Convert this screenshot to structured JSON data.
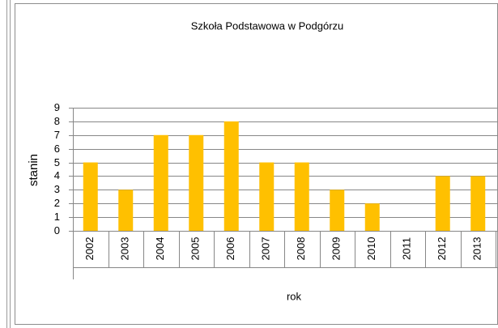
{
  "chart_data": {
    "type": "bar",
    "title": "Szkoła Podstawowa w Podgórzu",
    "x_label": "rok",
    "y_label": "stanin",
    "categories": [
      "2002",
      "2003",
      "2004",
      "2005",
      "2006",
      "2007",
      "2008",
      "2009",
      "2010",
      "2011",
      "2012",
      "2013"
    ],
    "values": [
      5,
      3,
      7,
      7,
      8,
      5,
      5,
      3,
      2,
      null,
      4,
      4
    ],
    "color": "#ffc000",
    "ylim": [
      0,
      9
    ],
    "yticks": [
      0,
      1,
      2,
      3,
      4,
      5,
      6,
      7,
      8,
      9
    ],
    "grid": true
  }
}
